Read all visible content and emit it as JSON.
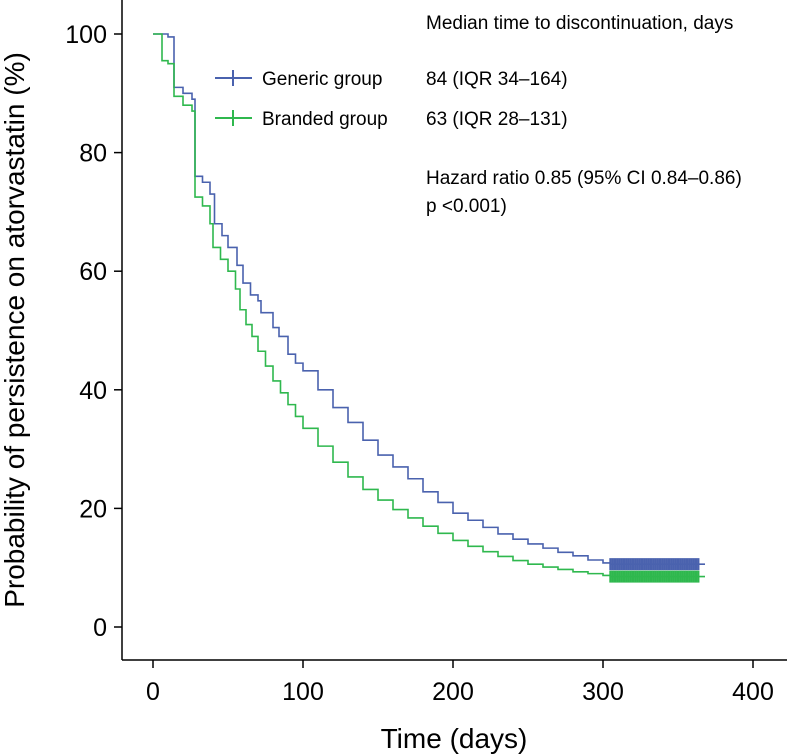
{
  "chart_data": {
    "type": "line",
    "subtype": "kaplan-meier",
    "title": "",
    "xlabel": "Time (days)",
    "ylabel": "Probability of persistence on atorvastatin (%)",
    "xlim": [
      -20,
      420
    ],
    "ylim": [
      -5,
      105
    ],
    "xticks": [
      0,
      100,
      200,
      300,
      400
    ],
    "yticks": [
      0,
      20,
      40,
      60,
      80,
      100
    ],
    "legend_header": "Median time to discontinuation, days",
    "series": [
      {
        "name": "Generic group",
        "median_label": "84 (IQR 34–164)",
        "color": "#4a62ae",
        "points": [
          [
            0,
            100
          ],
          [
            10,
            99.5
          ],
          [
            14,
            91
          ],
          [
            20,
            90
          ],
          [
            26,
            89
          ],
          [
            28,
            76
          ],
          [
            33,
            75
          ],
          [
            38,
            73
          ],
          [
            41,
            68
          ],
          [
            46,
            66
          ],
          [
            50,
            64
          ],
          [
            56,
            61
          ],
          [
            60,
            58
          ],
          [
            65,
            56
          ],
          [
            70,
            55
          ],
          [
            72,
            53
          ],
          [
            80,
            50.5
          ],
          [
            84,
            49
          ],
          [
            90,
            46
          ],
          [
            95,
            44.5
          ],
          [
            100,
            43.2
          ],
          [
            110,
            40
          ],
          [
            120,
            37
          ],
          [
            130,
            34.5
          ],
          [
            140,
            31.5
          ],
          [
            150,
            29
          ],
          [
            160,
            27
          ],
          [
            170,
            25
          ],
          [
            180,
            22.8
          ],
          [
            190,
            21
          ],
          [
            200,
            19.2
          ],
          [
            210,
            18
          ],
          [
            220,
            16.8
          ],
          [
            230,
            15.7
          ],
          [
            240,
            14.8
          ],
          [
            250,
            14
          ],
          [
            260,
            13.3
          ],
          [
            270,
            12.6
          ],
          [
            280,
            12
          ],
          [
            290,
            11.3
          ],
          [
            300,
            10.8
          ],
          [
            305,
            10.6
          ],
          [
            368,
            10.6
          ]
        ],
        "censor_x_range": [
          305,
          364
        ]
      },
      {
        "name": "Branded group",
        "median_label": "63 (IQR 28–131)",
        "color": "#2fb84e",
        "points": [
          [
            0,
            100
          ],
          [
            6,
            95.5
          ],
          [
            10,
            95
          ],
          [
            14,
            89.5
          ],
          [
            20,
            88
          ],
          [
            26,
            87
          ],
          [
            28,
            72.5
          ],
          [
            33,
            71
          ],
          [
            38,
            68
          ],
          [
            40,
            64
          ],
          [
            45,
            62
          ],
          [
            50,
            60
          ],
          [
            55,
            57
          ],
          [
            58,
            53.5
          ],
          [
            62,
            51
          ],
          [
            66,
            49
          ],
          [
            70,
            46.5
          ],
          [
            75,
            44
          ],
          [
            80,
            41.5
          ],
          [
            85,
            39.5
          ],
          [
            90,
            37.5
          ],
          [
            95,
            35.5
          ],
          [
            100,
            33.5
          ],
          [
            110,
            30.5
          ],
          [
            120,
            27.8
          ],
          [
            130,
            25.3
          ],
          [
            140,
            23.2
          ],
          [
            150,
            21.4
          ],
          [
            160,
            19.8
          ],
          [
            170,
            18.4
          ],
          [
            180,
            17
          ],
          [
            190,
            15.8
          ],
          [
            200,
            14.6
          ],
          [
            210,
            13.6
          ],
          [
            220,
            12.7
          ],
          [
            230,
            11.9
          ],
          [
            240,
            11.2
          ],
          [
            250,
            10.6
          ],
          [
            260,
            10.1
          ],
          [
            270,
            9.7
          ],
          [
            280,
            9.3
          ],
          [
            290,
            9
          ],
          [
            300,
            8.7
          ],
          [
            305,
            8.5
          ],
          [
            368,
            8.5
          ]
        ],
        "censor_x_range": [
          305,
          364
        ]
      }
    ],
    "annotation": {
      "hazard_ratio": "Hazard ratio 0.85 (95% CI 0.84–0.86)",
      "p_value": "p <0.001)"
    }
  }
}
